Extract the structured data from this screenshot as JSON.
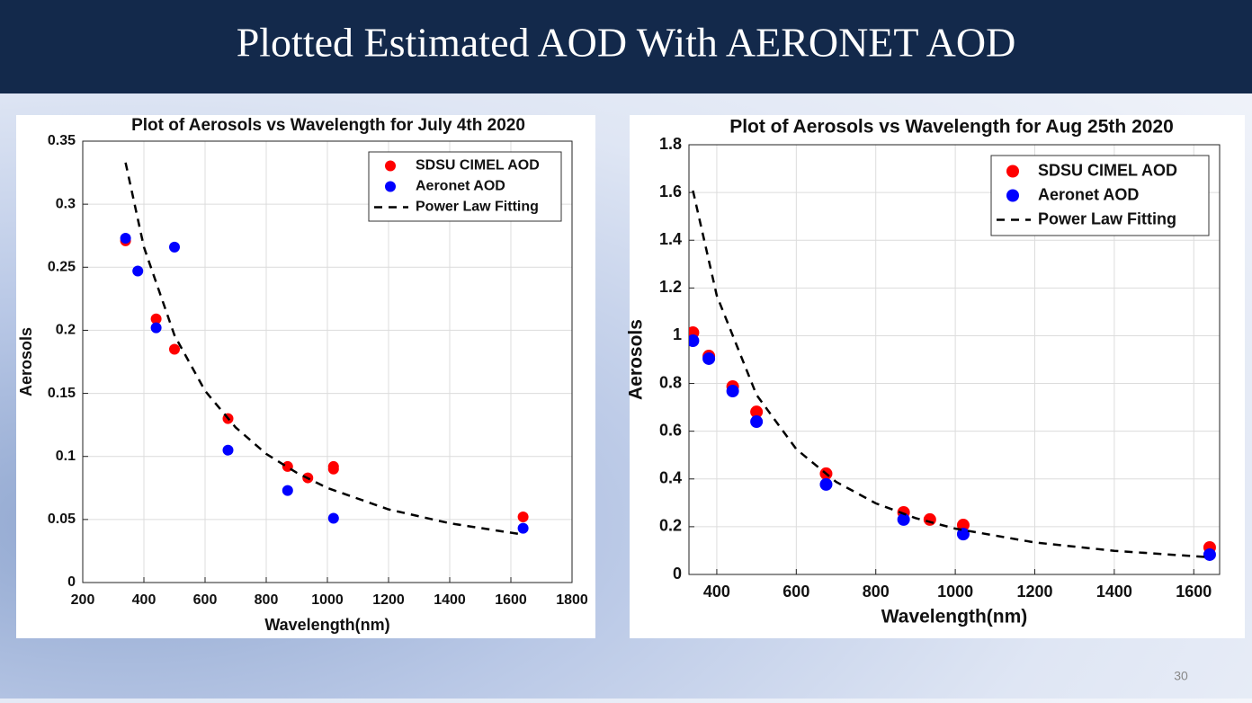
{
  "header": {
    "title": "Plotted Estimated AOD With AERONET AOD"
  },
  "page_number": "30",
  "chart_data": [
    {
      "type": "scatter",
      "title": "Plot of Aerosols vs Wavelength for July 4th 2020",
      "xlabel": "Wavelength(nm)",
      "ylabel": "Aerosols",
      "xlim": [
        200,
        1800
      ],
      "xticks": [
        200,
        400,
        600,
        800,
        1000,
        1200,
        1400,
        1600,
        1800
      ],
      "ylim": [
        0,
        0.35
      ],
      "yticks": [
        0,
        0.05,
        0.1,
        0.15,
        0.2,
        0.25,
        0.3,
        0.35
      ],
      "grid": true,
      "legend": "upper right",
      "series": [
        {
          "name": "SDSU CIMEL AOD",
          "color": "#ff0000",
          "mode": "markers",
          "x": [
            340,
            440,
            500,
            675,
            870,
            936,
            1020,
            1020,
            1640
          ],
          "values": [
            0.271,
            0.209,
            0.185,
            0.13,
            0.092,
            0.083,
            0.092,
            0.09,
            0.052
          ]
        },
        {
          "name": "Aeronet AOD",
          "color": "#0000ff",
          "mode": "markers",
          "x": [
            340,
            380,
            440,
            500,
            675,
            870,
            1020,
            1640
          ],
          "values": [
            0.273,
            0.247,
            0.202,
            0.266,
            0.105,
            0.073,
            0.051,
            0.043
          ]
        },
        {
          "name": "Power Law Fitting",
          "color": "#000000",
          "mode": "dashed-line",
          "x": [
            340,
            400,
            500,
            600,
            700,
            800,
            900,
            1000,
            1200,
            1400,
            1640
          ],
          "values": [
            0.333,
            0.266,
            0.196,
            0.152,
            0.123,
            0.102,
            0.087,
            0.075,
            0.058,
            0.047,
            0.038
          ]
        }
      ]
    },
    {
      "type": "scatter",
      "title": "Plot of Aerosols vs Wavelength for Aug 25th 2020",
      "xlabel": "Wavelength(nm)",
      "ylabel": "Aerosols",
      "xlim": [
        330,
        1665
      ],
      "xticks": [
        400,
        600,
        800,
        1000,
        1200,
        1400,
        1600
      ],
      "ylim": [
        0,
        1.8
      ],
      "yticks": [
        0,
        0.2,
        0.4,
        0.6,
        0.8,
        1,
        1.2,
        1.4,
        1.6,
        1.8
      ],
      "grid": true,
      "legend": "upper right",
      "series": [
        {
          "name": "SDSU CIMEL AOD",
          "color": "#ff0000",
          "mode": "markers",
          "x": [
            340,
            380,
            440,
            500,
            675,
            870,
            936,
            1020,
            1640
          ],
          "values": [
            1.013,
            0.915,
            0.787,
            0.681,
            0.422,
            0.26,
            0.23,
            0.207,
            0.113
          ]
        },
        {
          "name": "Aeronet AOD",
          "color": "#0000ff",
          "mode": "markers",
          "x": [
            340,
            380,
            440,
            500,
            675,
            870,
            1020,
            1640
          ],
          "values": [
            0.979,
            0.904,
            0.768,
            0.64,
            0.377,
            0.23,
            0.169,
            0.083
          ]
        },
        {
          "name": "Power Law Fitting",
          "color": "#000000",
          "mode": "dashed-line",
          "x": [
            340,
            400,
            500,
            600,
            700,
            800,
            900,
            1000,
            1200,
            1400,
            1640
          ],
          "values": [
            1.608,
            1.168,
            0.752,
            0.525,
            0.388,
            0.298,
            0.236,
            0.192,
            0.134,
            0.099,
            0.072
          ]
        }
      ]
    }
  ]
}
